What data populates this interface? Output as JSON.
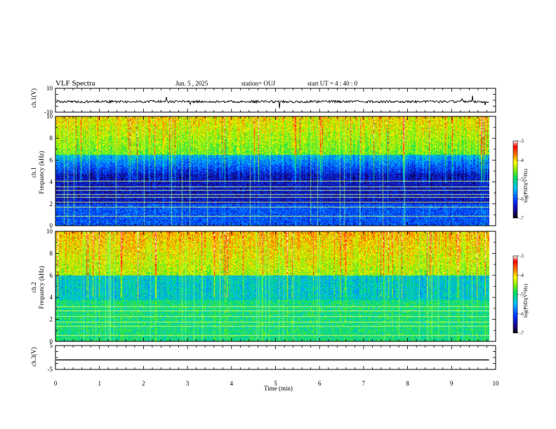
{
  "header": {
    "title": "VLF Spectra",
    "date": "Jun. 5 , 2025",
    "station": "station= OUJ",
    "start": "start UT = 4 : 40 : 0"
  },
  "chart_data": [
    {
      "type": "line",
      "ylabel": "ch.1(V)",
      "ylim": [
        -10,
        10
      ],
      "yticks": [
        "10",
        "-10"
      ],
      "baseline": 0
    },
    {
      "type": "heatmap",
      "ylabel_top": "ch.1",
      "ylabel": "Frequancy (kHz)",
      "ylim": [
        0,
        10
      ],
      "yticks": [
        "0",
        "2",
        "4",
        "6",
        "8",
        "10"
      ],
      "colorbar": {
        "ticks": [
          "-3",
          "-4",
          "-5",
          "-6",
          "-7"
        ],
        "label": "log(PSD)(V²/Hz)",
        "range": [
          -7,
          -3
        ]
      }
    },
    {
      "type": "heatmap",
      "ylabel_top": "ch.2",
      "ylabel": "Frequancy (kHz)",
      "ylim": [
        0,
        10
      ],
      "yticks": [
        "0",
        "2",
        "4",
        "6",
        "8",
        "10"
      ],
      "colorbar": {
        "ticks": [
          "-3",
          "-4",
          "-5",
          "-6",
          "-7"
        ],
        "label": "log(PSD)(V²/Hz)",
        "range": [
          -7,
          -3
        ]
      }
    },
    {
      "type": "line",
      "ylabel": "ch.3(V)",
      "ylim": [
        -5,
        5
      ],
      "yticks": [
        "5",
        "-5"
      ],
      "baseline": -1
    }
  ],
  "xaxis": {
    "label": "Time (min)",
    "range": [
      0,
      10
    ],
    "ticks": [
      "0",
      "1",
      "2",
      "3",
      "4",
      "5",
      "6",
      "7",
      "8",
      "9",
      "10"
    ],
    "data_end": 9.85
  }
}
